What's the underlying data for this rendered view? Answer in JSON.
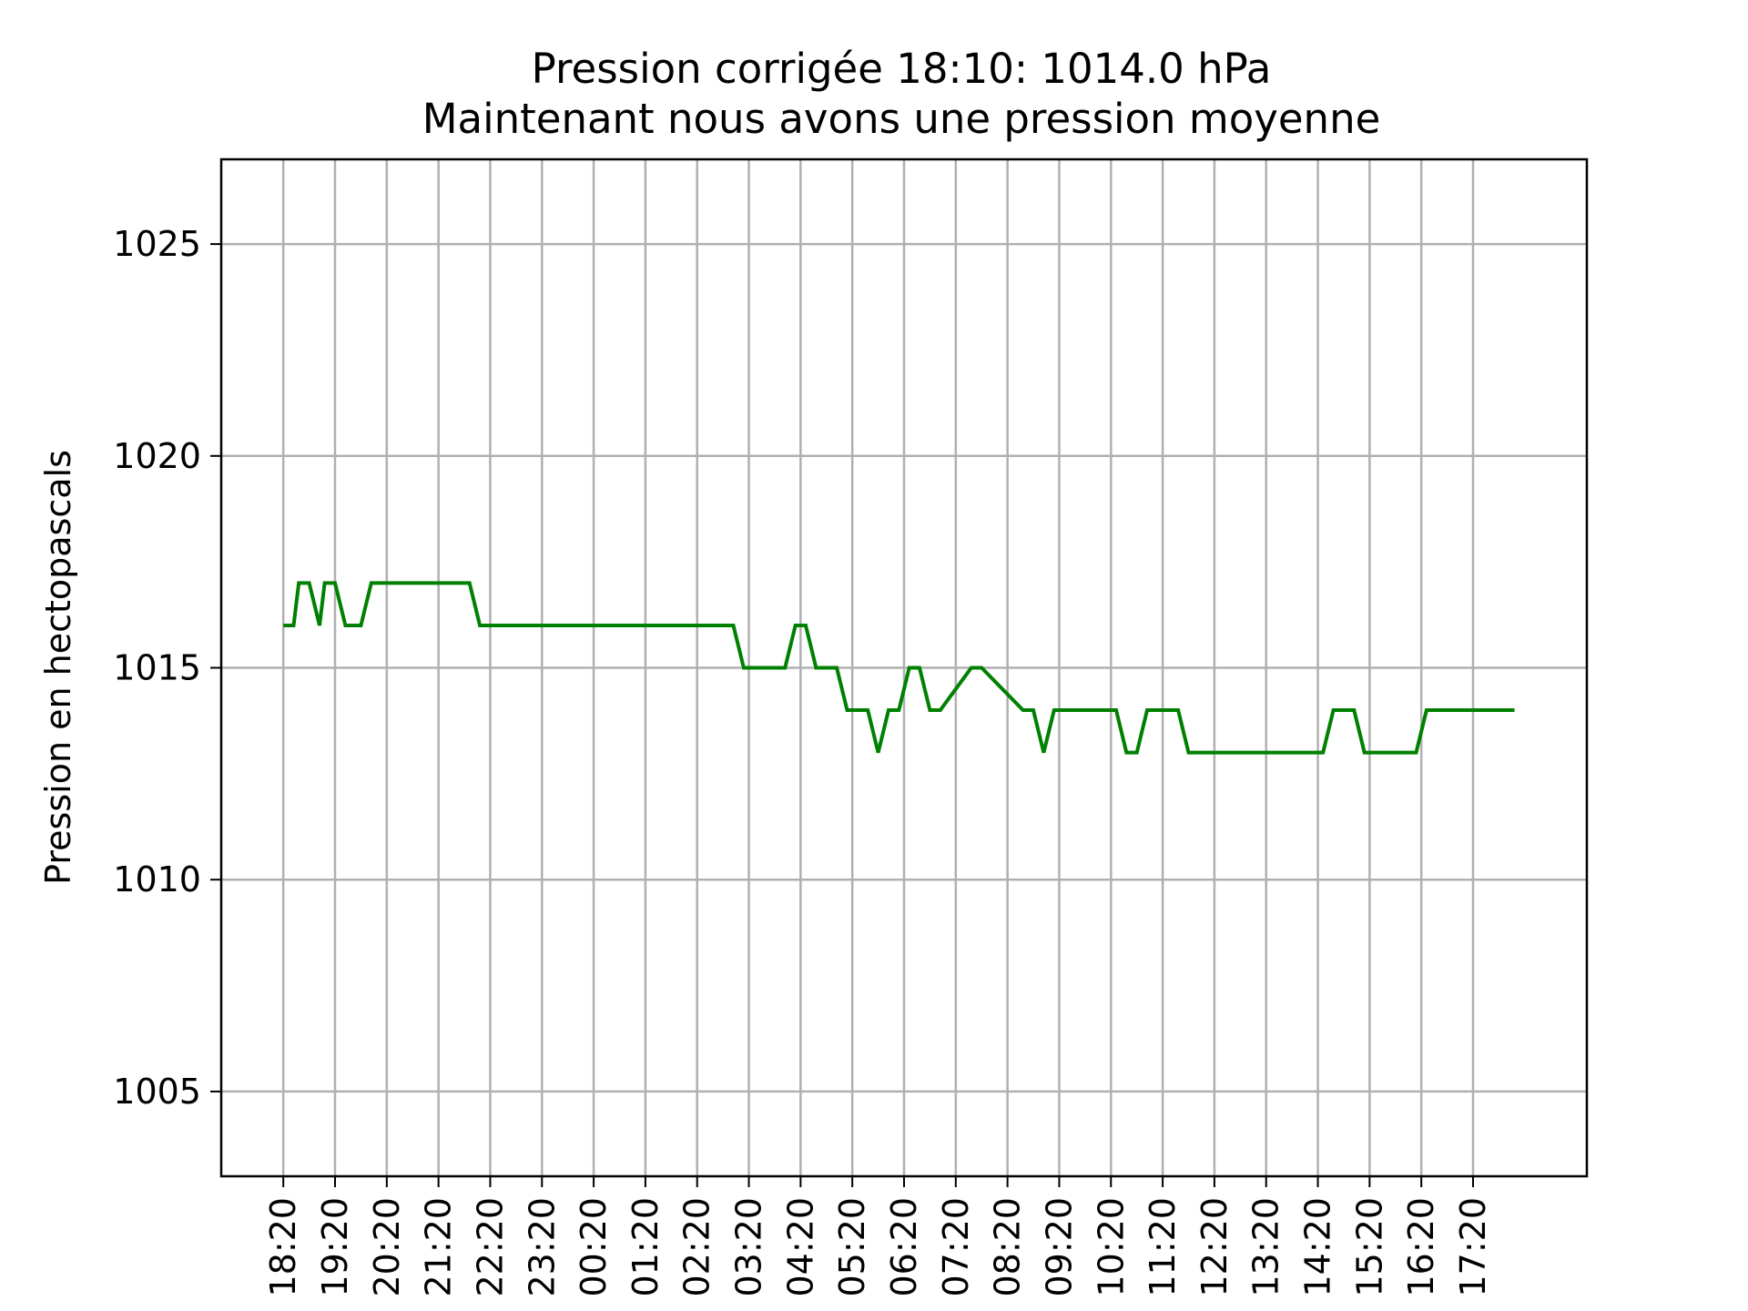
{
  "chart_data": {
    "type": "line",
    "title": "Pression corrigée 18:10: 1014.0 hPa",
    "subtitle": "Maintenant nous avons une pression moyenne",
    "xlabel": "",
    "ylabel": "Pression en hectopascals",
    "ylim": [
      1003,
      1027
    ],
    "yticks": [
      1005,
      1010,
      1015,
      1020,
      1025
    ],
    "grid": true,
    "line_color": "#008000",
    "xticks": [
      "18:20",
      "19:20",
      "20:20",
      "21:20",
      "22:20",
      "23:20",
      "00:20",
      "01:20",
      "02:20",
      "03:20",
      "04:20",
      "05:20",
      "06:20",
      "07:20",
      "08:20",
      "09:20",
      "10:20",
      "11:20",
      "12:20",
      "13:20",
      "14:20",
      "15:20",
      "16:20",
      "17:20"
    ],
    "x_hours_range": [
      -1.2,
      25.2
    ],
    "series": [
      {
        "x_hours": [
          0.0,
          0.2,
          0.3,
          0.5,
          0.7,
          0.8,
          1.0,
          1.2,
          1.5,
          1.7,
          1.9,
          3.6,
          3.8,
          8.7,
          8.9,
          9.7,
          9.9,
          10.1,
          10.3,
          10.7,
          10.9,
          11.3,
          11.5,
          11.7,
          11.9,
          12.1,
          12.3,
          12.5,
          12.7,
          13.3,
          13.5,
          14.3,
          14.5,
          14.7,
          14.9,
          16.1,
          16.3,
          16.5,
          16.7,
          17.3,
          17.5,
          20.1,
          20.3,
          20.7,
          20.9,
          21.9,
          22.1,
          23.3,
          23.5,
          23.8
        ],
        "values": [
          1016,
          1016,
          1017,
          1017,
          1016,
          1017,
          1017,
          1016,
          1016,
          1017,
          1017,
          1017,
          1016,
          1016,
          1015,
          1015,
          1016,
          1016,
          1015,
          1015,
          1014,
          1014,
          1013,
          1014,
          1014,
          1015,
          1015,
          1014,
          1014,
          1015,
          1015,
          1014,
          1014,
          1013,
          1014,
          1014,
          1013,
          1013,
          1014,
          1014,
          1013,
          1013,
          1014,
          1014,
          1013,
          1013,
          1014,
          1014,
          1014,
          1014
        ]
      }
    ]
  }
}
